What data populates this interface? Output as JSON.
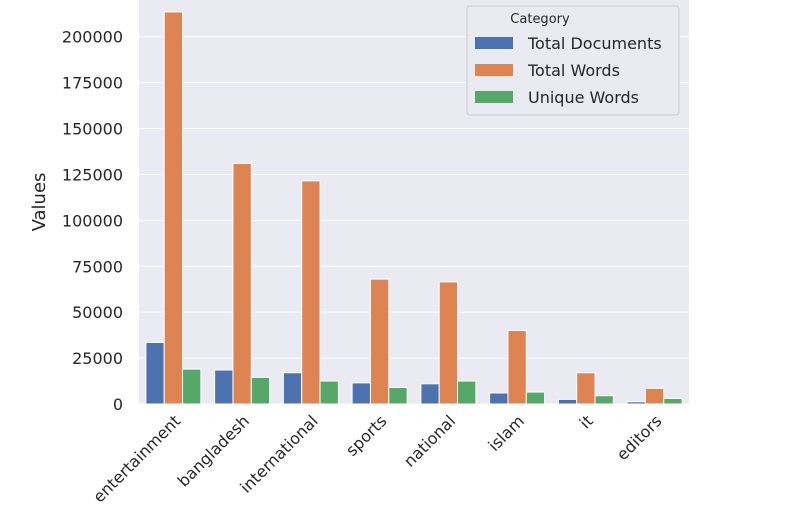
{
  "chart_data": {
    "type": "bar",
    "title": "",
    "xlabel": "",
    "ylabel": "Values",
    "ylim": [
      0,
      220000
    ],
    "yticks": [
      0,
      25000,
      50000,
      75000,
      100000,
      125000,
      150000,
      175000,
      200000
    ],
    "grid": true,
    "categories": [
      "entertainment",
      "bangladesh",
      "international",
      "sports",
      "national",
      "islam",
      "it",
      "editors"
    ],
    "legend": {
      "title": "Category",
      "placement": "top-right"
    },
    "series": [
      {
        "name": "Total Documents",
        "color": "#4c72b0",
        "values": [
          33500,
          18500,
          17000,
          11500,
          11000,
          6000,
          2500,
          1200
        ]
      },
      {
        "name": "Total Words",
        "color": "#dd8452",
        "values": [
          213500,
          131000,
          121500,
          68000,
          66500,
          40000,
          17000,
          8500
        ]
      },
      {
        "name": "Unique Words",
        "color": "#55a868",
        "values": [
          19000,
          14500,
          12500,
          9000,
          12500,
          6500,
          4500,
          3000
        ]
      }
    ]
  }
}
